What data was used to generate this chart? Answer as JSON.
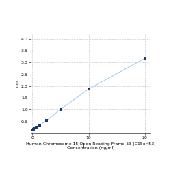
{
  "x": [
    0,
    0.156,
    0.312,
    0.625,
    1.25,
    2.5,
    5,
    10,
    20
  ],
  "y": [
    0.152,
    0.182,
    0.22,
    0.27,
    0.35,
    0.54,
    1.02,
    1.88,
    3.18
  ],
  "line_color": "#aacce8",
  "marker_color": "#1a3a6b",
  "marker_size": 3.5,
  "xlabel_line1": "Human Chromosome 15 Open Reading Frame 53 (C15orf53)",
  "xlabel_line2": "Concentration (ng/ml)",
  "ylabel": "OD",
  "xlim": [
    -0.3,
    21
  ],
  "ylim": [
    0,
    4.2
  ],
  "yticks": [
    0.5,
    1.0,
    1.5,
    2.0,
    2.5,
    3.0,
    3.5,
    4.0
  ],
  "xticks": [
    0,
    10,
    20
  ],
  "grid_color": "#cccccc",
  "bg_color": "#ffffff",
  "label_fontsize": 4.5,
  "tick_fontsize": 4.5
}
